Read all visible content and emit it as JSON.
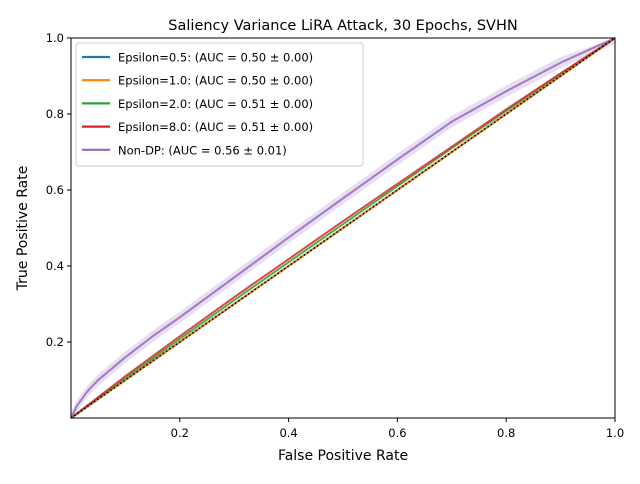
{
  "chart_data": {
    "type": "line",
    "title": "Saliency Variance LiRA Attack, 30 Epochs, SVHN",
    "xlabel": "False Positive Rate",
    "ylabel": "True Positive Rate",
    "xlim": [
      0.0,
      1.0
    ],
    "ylim": [
      0.0,
      1.0
    ],
    "xticks": [
      "0.2",
      "0.4",
      "0.6",
      "0.8",
      "1.0"
    ],
    "yticks": [
      "0.2",
      "0.4",
      "0.6",
      "0.8",
      "1.0"
    ],
    "grid": false,
    "legend_position": "upper-left",
    "reference_line": {
      "style": "dotted",
      "color": "#000000",
      "x": [
        0,
        1
      ],
      "y": [
        0,
        1
      ]
    },
    "series": [
      {
        "name": "Epsilon=0.5: (AUC = 0.50 ± 0.00)",
        "color": "#1f77b4",
        "x": [
          0,
          0.1,
          0.2,
          0.3,
          0.4,
          0.5,
          0.6,
          0.7,
          0.8,
          0.9,
          1.0
        ],
        "y": [
          0,
          0.1,
          0.2,
          0.3,
          0.4,
          0.5,
          0.6,
          0.7,
          0.8,
          0.9,
          1.0
        ]
      },
      {
        "name": "Epsilon=1.0: (AUC = 0.50 ± 0.00)",
        "color": "#ff7f0e",
        "x": [
          0,
          0.1,
          0.2,
          0.3,
          0.4,
          0.5,
          0.6,
          0.7,
          0.8,
          0.9,
          1.0
        ],
        "y": [
          0,
          0.1,
          0.2,
          0.3,
          0.4,
          0.5,
          0.6,
          0.7,
          0.8,
          0.9,
          1.0
        ]
      },
      {
        "name": "Epsilon=2.0: (AUC = 0.51 ± 0.00)",
        "color": "#2ca02c",
        "x": [
          0,
          0.1,
          0.2,
          0.3,
          0.4,
          0.5,
          0.6,
          0.7,
          0.8,
          0.9,
          1.0
        ],
        "y": [
          0,
          0.105,
          0.208,
          0.31,
          0.41,
          0.51,
          0.61,
          0.71,
          0.808,
          0.905,
          1.0
        ]
      },
      {
        "name": "Epsilon=8.0: (AUC = 0.51 ± 0.00)",
        "color": "#d62728",
        "x": [
          0,
          0.1,
          0.2,
          0.3,
          0.4,
          0.5,
          0.6,
          0.7,
          0.8,
          0.9,
          1.0
        ],
        "y": [
          0,
          0.11,
          0.215,
          0.318,
          0.418,
          0.518,
          0.616,
          0.714,
          0.812,
          0.907,
          1.0
        ]
      },
      {
        "name": "Non-DP: (AUC = 0.56 ± 0.01)",
        "color": "#9467bd",
        "x": [
          0,
          0.01,
          0.03,
          0.05,
          0.1,
          0.15,
          0.2,
          0.3,
          0.4,
          0.5,
          0.6,
          0.7,
          0.8,
          0.9,
          1.0
        ],
        "y": [
          0,
          0.03,
          0.07,
          0.1,
          0.16,
          0.215,
          0.265,
          0.37,
          0.475,
          0.578,
          0.68,
          0.78,
          0.86,
          0.935,
          1.0
        ],
        "band": 0.015
      }
    ]
  }
}
